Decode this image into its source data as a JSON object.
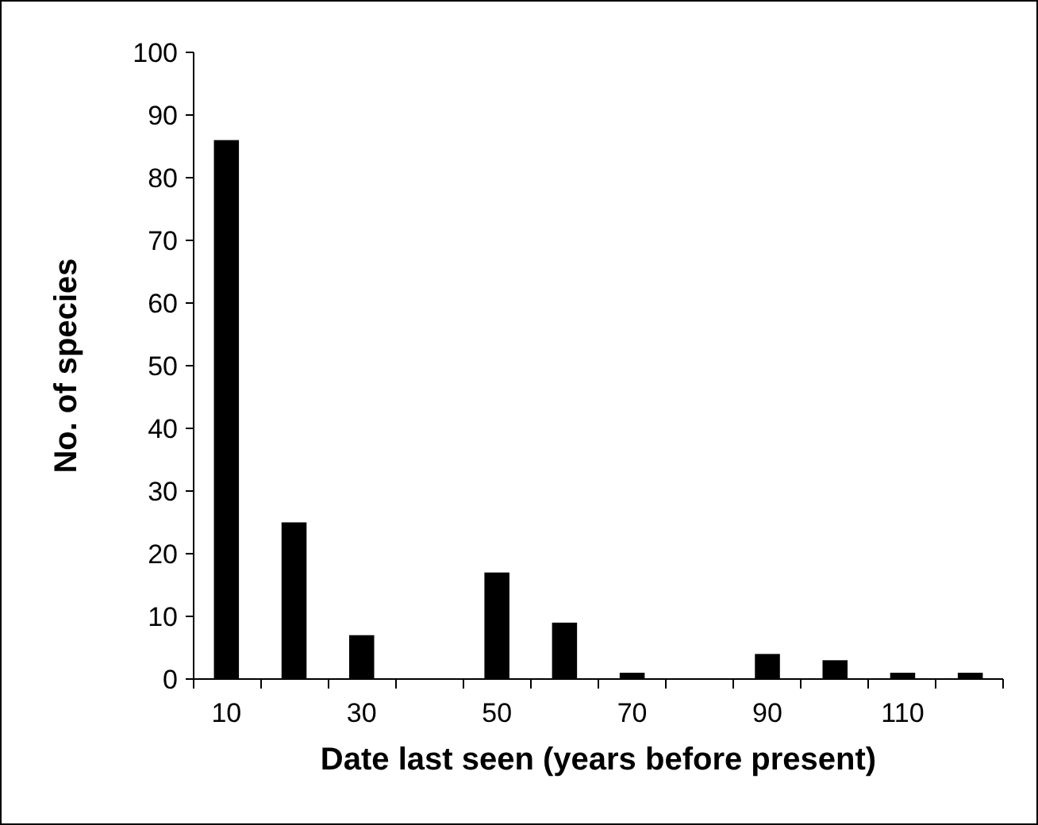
{
  "chart_data": {
    "type": "bar",
    "xlabel": "Date last seen (years before present)",
    "ylabel": "No. of species",
    "categories": [
      "10",
      null,
      "30",
      null,
      "50",
      null,
      "70",
      null,
      "90",
      null,
      "110",
      null
    ],
    "values": [
      86,
      25,
      7,
      0,
      17,
      9,
      1,
      0,
      4,
      3,
      1,
      1
    ],
    "color": "#000000",
    "ylim": [
      0,
      100
    ],
    "yticks": [
      0,
      10,
      20,
      30,
      40,
      50,
      60,
      70,
      80,
      90,
      100
    ],
    "grid": false
  }
}
